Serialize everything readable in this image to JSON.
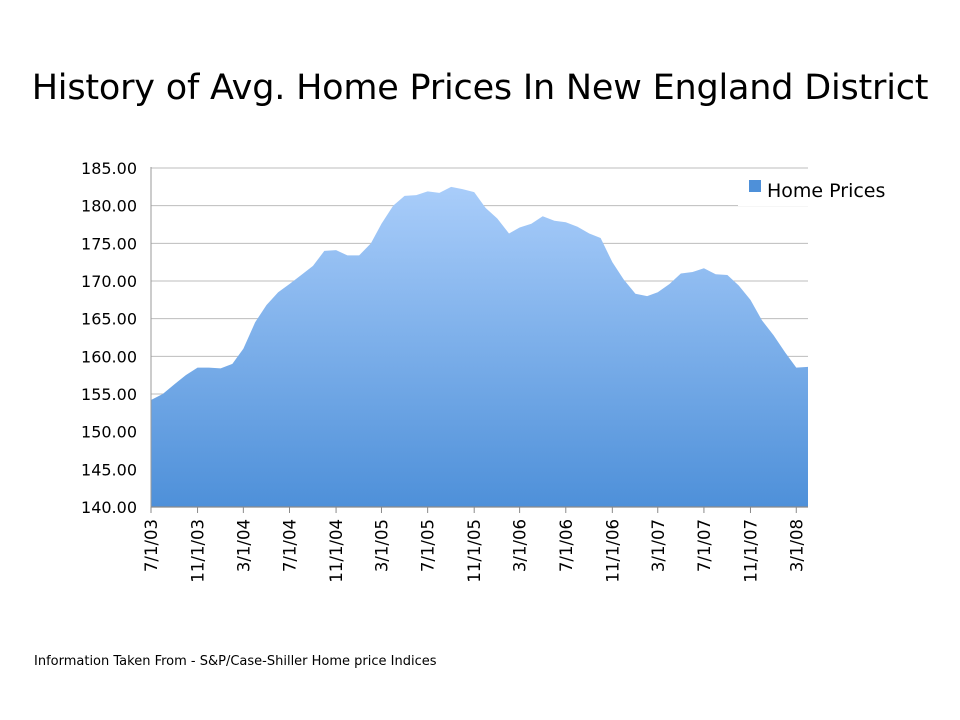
{
  "slide": {
    "title": "History of Avg. Home Prices In New England District",
    "source_note": "Information Taken From - S&P/Case-Shiller Home price Indices"
  },
  "chart_data": {
    "type": "area",
    "title": "History of Avg. Home Prices In New England District",
    "ylim": [
      140,
      185
    ],
    "yticks": [
      "140.00",
      "145.00",
      "150.00",
      "155.00",
      "160.00",
      "165.00",
      "170.00",
      "175.00",
      "180.00",
      "185.00"
    ],
    "xtick_labels": [
      "7/1/03",
      "11/1/03",
      "3/1/04",
      "7/1/04",
      "11/1/04",
      "3/1/05",
      "7/1/05",
      "11/1/05",
      "3/1/06",
      "7/1/06",
      "11/1/06",
      "3/1/07",
      "7/1/07",
      "11/1/07",
      "3/1/08"
    ],
    "grid": true,
    "legend_position": "top-right",
    "series_color_top": "#a9cdfa",
    "series_color_bottom": "#4e90d9",
    "series": [
      {
        "name": "Home Prices",
        "x": [
          "7/1/03",
          "8/1/03",
          "9/1/03",
          "10/1/03",
          "11/1/03",
          "12/1/03",
          "1/1/04",
          "2/1/04",
          "3/1/04",
          "4/1/04",
          "5/1/04",
          "6/1/04",
          "7/1/04",
          "8/1/04",
          "9/1/04",
          "10/1/04",
          "11/1/04",
          "12/1/04",
          "1/1/05",
          "2/1/05",
          "3/1/05",
          "4/1/05",
          "5/1/05",
          "6/1/05",
          "7/1/05",
          "8/1/05",
          "9/1/05",
          "10/1/05",
          "11/1/05",
          "12/1/05",
          "1/1/06",
          "2/1/06",
          "3/1/06",
          "4/1/06",
          "5/1/06",
          "6/1/06",
          "7/1/06",
          "8/1/06",
          "9/1/06",
          "10/1/06",
          "11/1/06",
          "12/1/06",
          "1/1/07",
          "2/1/07",
          "3/1/07",
          "4/1/07",
          "5/1/07",
          "6/1/07",
          "7/1/07",
          "8/1/07",
          "9/1/07",
          "10/1/07",
          "11/1/07",
          "12/1/07",
          "1/1/08",
          "2/1/08",
          "3/1/08",
          "4/1/08"
        ],
        "values": [
          154.2,
          155.0,
          156.3,
          157.5,
          158.5,
          158.5,
          158.4,
          159.0,
          161.0,
          164.5,
          166.8,
          168.5,
          169.6,
          170.8,
          172.0,
          174.0,
          174.1,
          173.4,
          173.4,
          175.0,
          177.6,
          180.0,
          181.3,
          181.4,
          181.9,
          181.7,
          182.5,
          182.2,
          181.8,
          179.7,
          178.3,
          176.3,
          177.1,
          177.6,
          178.6,
          178.0,
          177.8,
          177.2,
          176.3,
          175.7,
          172.5,
          170.2,
          168.3,
          168.0,
          168.5,
          169.6,
          171.0,
          171.2,
          171.7,
          170.9,
          170.8,
          169.4,
          167.5,
          164.8,
          162.8,
          160.5,
          158.5,
          158.6
        ]
      }
    ]
  }
}
